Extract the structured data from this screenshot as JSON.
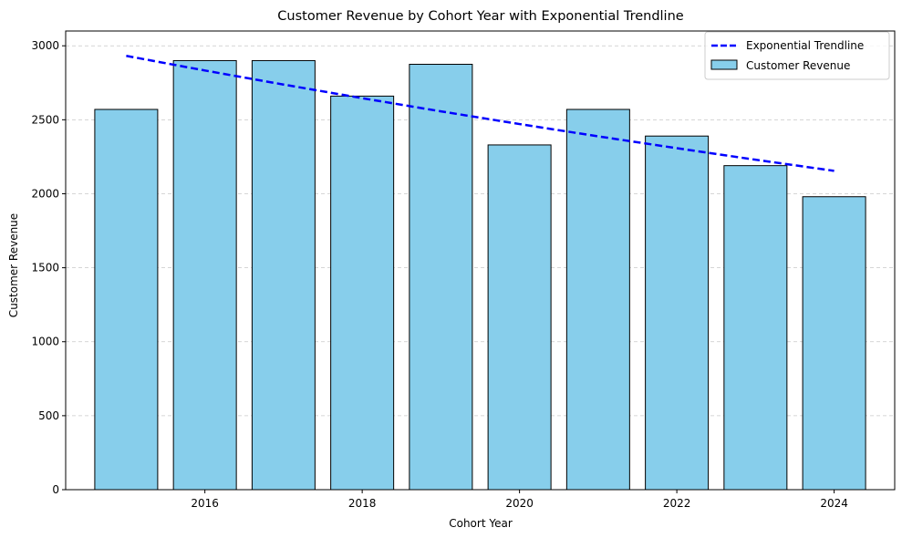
{
  "chart_data": {
    "type": "bar",
    "title": "Customer Revenue by Cohort Year with Exponential Trendline",
    "xlabel": "Cohort Year",
    "ylabel": "Customer Revenue",
    "xlim": [
      2014.23,
      2024.77
    ],
    "ylim": [
      0,
      3100
    ],
    "x_ticks": [
      2016,
      2018,
      2020,
      2022,
      2024
    ],
    "y_ticks": [
      0,
      500,
      1000,
      1500,
      2000,
      2500,
      3000
    ],
    "grid": "y-dashed",
    "legend_position": "top-right",
    "categories": [
      2015,
      2016,
      2017,
      2018,
      2019,
      2020,
      2021,
      2022,
      2023,
      2024
    ],
    "series": [
      {
        "name": "Customer Revenue",
        "type": "bar",
        "color": "#87CEEB",
        "edge_color": "#000000",
        "values": [
          2570,
          2900,
          2900,
          2660,
          2875,
          2330,
          2570,
          2390,
          2190,
          1980
        ]
      },
      {
        "name": "Exponential Trendline",
        "type": "line",
        "color": "#0000FF",
        "style": "dashed",
        "values": [
          2932,
          2833,
          2738,
          2646,
          2557,
          2471,
          2388,
          2308,
          2230,
          2155
        ]
      }
    ]
  }
}
